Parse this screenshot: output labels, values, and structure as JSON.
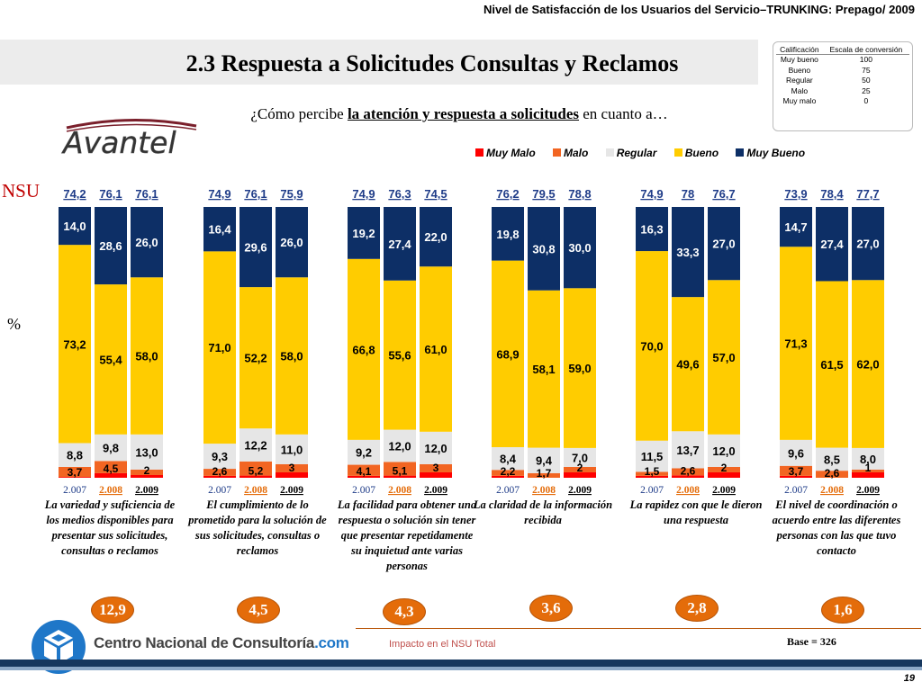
{
  "header": {
    "title": "Nivel de Satisfacción de los Usuarios del Servicio–TRUNKING: Prepago/ 2009"
  },
  "main_title": "2.3 Respuesta a Solicitudes Consultas y Reclamos",
  "scale_table": {
    "headers": [
      "Calificación",
      "Escala de conversión"
    ],
    "rows": [
      [
        "Muy bueno",
        "100"
      ],
      [
        "Bueno",
        "75"
      ],
      [
        "Regular",
        "50"
      ],
      [
        "Malo",
        "25"
      ],
      [
        "Muy malo",
        "0"
      ]
    ]
  },
  "question": {
    "prefix": "¿Cómo percibe ",
    "underlined": "la atención y respuesta a solicitudes",
    "suffix": " en cuanto a…"
  },
  "brand_logo": {
    "text": "Avantel"
  },
  "nsu_label": "NSU",
  "percent_label": "%",
  "colors": {
    "muy_malo": "#ff0000",
    "malo": "#f26522",
    "regular": "#e6e6e6",
    "bueno": "#ffcc00",
    "muy_bueno": "#0d2f66",
    "impact": "#e46c0a",
    "nsu_text": "#1f3c88"
  },
  "legend": [
    {
      "label": "Muy Malo",
      "color": "#ff0000"
    },
    {
      "label": "Malo",
      "color": "#f26522"
    },
    {
      "label": "Regular",
      "color": "#e6e6e6"
    },
    {
      "label": "Bueno",
      "color": "#ffcc00"
    },
    {
      "label": "Muy Bueno",
      "color": "#0d2f66"
    }
  ],
  "chart_data": {
    "type": "bar",
    "stacked": true,
    "stack_order": [
      "Muy Malo",
      "Malo",
      "Regular",
      "Bueno",
      "Muy Bueno"
    ],
    "ylim": [
      0,
      100
    ],
    "year_labels": [
      "2.007",
      "2.008",
      "2.009"
    ],
    "groups": [
      {
        "category": "La variedad y suficiencia de los medios disponibles para presentar sus solicitudes, consultas o reclamos",
        "nsu": [
          "74,2",
          "76,1",
          "76,1"
        ],
        "bars": [
          {
            "muy_malo": 0.3,
            "malo": "3,7",
            "regular": "8,8",
            "bueno": "73,2",
            "muy_bueno": "14,0"
          },
          {
            "muy_malo": 1.7,
            "malo": "4,5",
            "regular": "9,8",
            "bueno": "55,4",
            "muy_bueno": "28,6"
          },
          {
            "muy_malo": 1.0,
            "malo": "2",
            "regular": "13,0",
            "bueno": "58,0",
            "muy_bueno": "26,0"
          }
        ],
        "impact": "12,9"
      },
      {
        "category": "El cumplimiento de lo prometido para la solución de sus solicitudes, consultas o reclamos",
        "nsu": [
          "74,9",
          "76,1",
          "75,9"
        ],
        "bars": [
          {
            "muy_malo": 0.7,
            "malo": "2,6",
            "regular": "9,3",
            "bueno": "71,0",
            "muy_bueno": "16,4"
          },
          {
            "muy_malo": 0.8,
            "malo": "5,2",
            "regular": "12,2",
            "bueno": "52,2",
            "muy_bueno": "29,6"
          },
          {
            "muy_malo": 2.0,
            "malo": "3",
            "regular": "11,0",
            "bueno": "58,0",
            "muy_bueno": "26,0"
          }
        ],
        "impact": "4,5"
      },
      {
        "category": "La facilidad para obtener una respuesta o solución sin tener que presentar repetidamente su inquietud ante varias personas",
        "nsu": [
          "74,9",
          "76,3",
          "74,5"
        ],
        "bars": [
          {
            "muy_malo": 0.7,
            "malo": "4,1",
            "regular": "9,2",
            "bueno": "66,8",
            "muy_bueno": "19,2"
          },
          {
            "muy_malo": 0.8,
            "malo": "5,1",
            "regular": "12,0",
            "bueno": "55,6",
            "muy_bueno": "27,4"
          },
          {
            "muy_malo": 2.0,
            "malo": "3",
            "regular": "12,0",
            "bueno": "61,0",
            "muy_bueno": "22,0"
          }
        ],
        "impact": "4,3"
      },
      {
        "category": "La claridad de la información recibida",
        "nsu": [
          "76,2",
          "79,5",
          "78,8"
        ],
        "bars": [
          {
            "muy_malo": 0.7,
            "malo": "2,2",
            "regular": "8,4",
            "bueno": "68,9",
            "muy_bueno": "19,8"
          },
          {
            "muy_malo": 0.0,
            "malo": "1,7",
            "regular": "9,4",
            "bueno": "58,1",
            "muy_bueno": "30,8"
          },
          {
            "muy_malo": 2.0,
            "malo": "2",
            "regular": "7,0",
            "bueno": "59,0",
            "muy_bueno": "30,0"
          }
        ],
        "impact": "3,6"
      },
      {
        "category": "La rapidez con que le dieron una respuesta",
        "nsu": [
          "74,9",
          "78",
          "76,7"
        ],
        "bars": [
          {
            "muy_malo": 0.7,
            "malo": "1,5",
            "regular": "11,5",
            "bueno": "70,0",
            "muy_bueno": "16,3"
          },
          {
            "muy_malo": 0.9,
            "malo": "2,6",
            "regular": "13,7",
            "bueno": "49,6",
            "muy_bueno": "33,3"
          },
          {
            "muy_malo": 2.0,
            "malo": "2",
            "regular": "12,0",
            "bueno": "57,0",
            "muy_bueno": "27,0"
          }
        ],
        "impact": "2,8"
      },
      {
        "category": "El nivel de coordinación o acuerdo entre las diferentes personas con las que tuvo contacto",
        "nsu": [
          "73,9",
          "78,4",
          "77,7"
        ],
        "bars": [
          {
            "muy_malo": 0.7,
            "malo": "3,7",
            "regular": "9,6",
            "bueno": "71,3",
            "muy_bueno": "14,7"
          },
          {
            "muy_malo": 0.0,
            "malo": "2,6",
            "regular": "8,5",
            "bueno": "61,5",
            "muy_bueno": "27,4"
          },
          {
            "muy_malo": 2.0,
            "malo": "1",
            "regular": "8,0",
            "bueno": "62,0",
            "muy_bueno": "27,0"
          }
        ],
        "impact": "1,6"
      }
    ]
  },
  "impact_label": "Impacto en el NSU Total",
  "base_label": "Base = 326",
  "footer": {
    "company_main": "Centro Nacional de Consultoría",
    "company_suffix": ".com",
    "page_number": "19"
  }
}
